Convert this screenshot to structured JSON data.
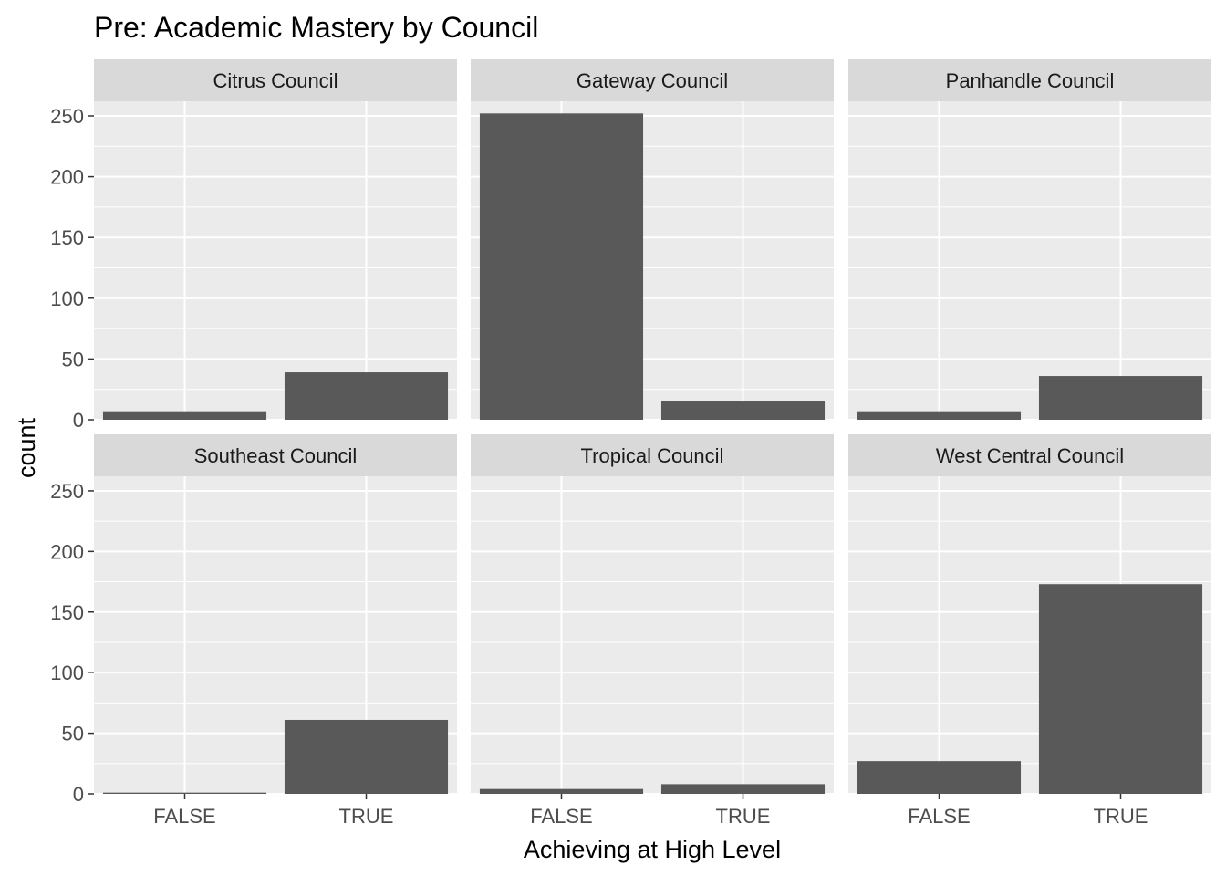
{
  "chart_data": {
    "type": "bar",
    "title": "Pre: Academic Mastery by Council",
    "xlabel": "Achieving at High Level",
    "ylabel": "count",
    "categories": [
      "FALSE",
      "TRUE"
    ],
    "ylim": [
      0,
      262
    ],
    "y_ticks": [
      0,
      50,
      100,
      150,
      200,
      250
    ],
    "grid": true,
    "facets": [
      {
        "name": "Citrus Council",
        "values": [
          7,
          39
        ]
      },
      {
        "name": "Gateway Council",
        "values": [
          252,
          15
        ]
      },
      {
        "name": "Panhandle Council",
        "values": [
          7,
          36
        ]
      },
      {
        "name": "Southeast Council",
        "values": [
          1,
          61
        ]
      },
      {
        "name": "Tropical Council",
        "values": [
          4,
          8
        ]
      },
      {
        "name": "West Central Council",
        "values": [
          27,
          173
        ]
      }
    ]
  },
  "colors": {
    "panel_bg": "#EBEBEB",
    "strip_bg": "#D9D9D9",
    "grid": "#FFFFFF",
    "bar": "#595959",
    "tick": "#333333"
  }
}
